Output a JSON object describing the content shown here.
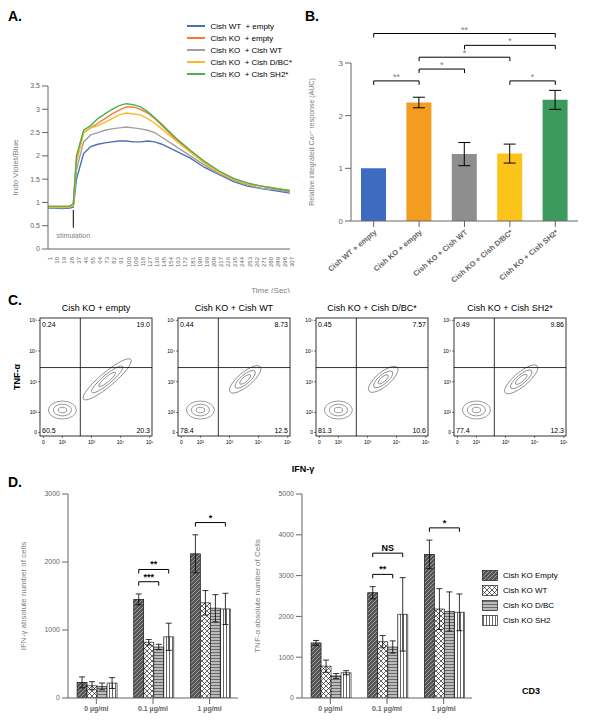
{
  "chart_data": [
    {
      "panel": "A.",
      "type": "line",
      "x_label": "Time (Sec)",
      "y_label": "Indo Violet/Blue",
      "legend": "upper right",
      "annotation": {
        "text": "stimulation",
        "x": 33
      },
      "x": [
        1,
        10,
        19,
        28,
        33,
        37,
        46,
        55,
        64,
        73,
        82,
        91,
        100,
        109,
        118,
        127,
        136,
        145,
        163,
        181,
        199,
        217,
        235,
        253,
        271,
        289,
        307
      ],
      "xlim": [
        1,
        307
      ],
      "xticks": [
        1,
        10,
        19,
        28,
        37,
        46,
        55,
        64,
        73,
        82,
        91,
        100,
        109,
        118,
        127,
        136,
        145,
        154,
        163,
        172,
        181,
        190,
        199,
        208,
        217,
        226,
        235,
        244,
        253,
        262,
        271,
        280,
        289,
        298,
        307
      ],
      "ylim": [
        0,
        3.5
      ],
      "yticks": [
        0,
        0.5,
        1,
        1.5,
        2,
        2.5,
        3,
        3.5
      ],
      "series": [
        {
          "name": "Cish WT  + empty",
          "color": "#4a6fb5",
          "values": [
            0.88,
            0.88,
            0.87,
            0.88,
            0.9,
            1.5,
            2.05,
            2.2,
            2.25,
            2.28,
            2.3,
            2.32,
            2.32,
            2.3,
            2.3,
            2.32,
            2.3,
            2.25,
            2.1,
            1.95,
            1.75,
            1.6,
            1.45,
            1.35,
            1.3,
            1.25,
            1.2
          ]
        },
        {
          "name": "Cish KO  + empty",
          "color": "#ef7d31",
          "values": [
            0.9,
            0.9,
            0.9,
            0.9,
            0.95,
            1.9,
            2.5,
            2.6,
            2.7,
            2.8,
            2.9,
            2.98,
            3.05,
            3.05,
            3.0,
            2.92,
            2.8,
            2.65,
            2.35,
            2.1,
            1.85,
            1.65,
            1.5,
            1.4,
            1.35,
            1.3,
            1.25
          ]
        },
        {
          "name": "Cish KO  + Cish WT",
          "color": "#a0a0a0",
          "values": [
            0.88,
            0.9,
            0.88,
            0.9,
            0.92,
            1.7,
            2.3,
            2.45,
            2.5,
            2.55,
            2.58,
            2.6,
            2.62,
            2.6,
            2.58,
            2.55,
            2.5,
            2.4,
            2.2,
            2.0,
            1.8,
            1.62,
            1.48,
            1.38,
            1.3,
            1.27,
            1.22
          ]
        },
        {
          "name": "Cish KO  + Cish D/BC*",
          "color": "#fdb827",
          "values": [
            0.9,
            0.9,
            0.9,
            0.9,
            0.94,
            1.85,
            2.5,
            2.6,
            2.65,
            2.72,
            2.8,
            2.88,
            2.92,
            2.9,
            2.88,
            2.8,
            2.7,
            2.58,
            2.32,
            2.08,
            1.85,
            1.65,
            1.5,
            1.4,
            1.35,
            1.3,
            1.25
          ]
        },
        {
          "name": "Cish KO  + Cish SH2*",
          "color": "#4caf50",
          "values": [
            0.92,
            0.92,
            0.92,
            0.92,
            0.97,
            2.0,
            2.55,
            2.65,
            2.8,
            2.9,
            3.0,
            3.08,
            3.12,
            3.1,
            3.05,
            2.95,
            2.82,
            2.68,
            2.38,
            2.12,
            1.88,
            1.68,
            1.52,
            1.42,
            1.35,
            1.3,
            1.25
          ]
        }
      ]
    },
    {
      "panel": "B.",
      "type": "bar",
      "y_label": "Relative integrated Ca²⁺ response (AUC)",
      "categories": [
        "Cish WT + empty",
        "Cish KO + empty",
        "Cish KO + Cish WT",
        "Cish KO + Cish D/BC*",
        "Cish KO + Cish SH2*"
      ],
      "values": [
        1,
        2.25,
        1.27,
        1.28,
        2.3
      ],
      "errors": [
        0,
        0.1,
        0.22,
        0.18,
        0.18
      ],
      "colors": [
        "#3d6bbf",
        "#f39c1f",
        "#8e8e8e",
        "#fcc419",
        "#3c9a5f"
      ],
      "ylim": [
        0,
        3
      ],
      "yticks": [
        0,
        1,
        2,
        3
      ],
      "significance": [
        {
          "from": "Cish WT + empty",
          "to": "Cish KO + empty",
          "label": "**"
        },
        {
          "from": "Cish KO + empty",
          "to": "Cish KO + Cish WT",
          "label": "*"
        },
        {
          "from": "Cish KO + Cish D/BC*",
          "to": "Cish KO + Cish SH2*",
          "label": "*"
        },
        {
          "from": "Cish KO + empty",
          "to": "Cish KO + Cish D/BC*",
          "label": "*"
        },
        {
          "from": "Cish KO + Cish WT",
          "to": "Cish KO + Cish SH2*",
          "label": "*"
        },
        {
          "from": "Cish WT + empty",
          "to": "Cish KO + Cish SH2*",
          "label": "**"
        }
      ]
    },
    {
      "panel": "C.",
      "type": "contour",
      "x_label": "IFN-γ",
      "y_label": "TNF-α",
      "log": true,
      "xticks": [
        0,
        {
          "value": 100,
          "label": "10²"
        },
        {
          "value": 1000,
          "label": "10³"
        },
        {
          "value": 10000,
          "label": "10⁴"
        },
        {
          "value": 100000,
          "label": "10⁵"
        }
      ],
      "yticks": [
        0,
        {
          "value": 100,
          "label": "10²"
        },
        {
          "value": 1000,
          "label": "10³"
        },
        {
          "value": 10000,
          "label": "10⁴"
        },
        {
          "value": 100000,
          "label": "10⁵"
        }
      ],
      "plots": [
        {
          "title": "Cish KO  + empty",
          "quadrants": {
            "upper_left": {
              "value": 0.24,
              "label": "0.24"
            },
            "upper_right": {
              "value": 19.0,
              "label": "19.0"
            },
            "lower_left": {
              "value": 60.5,
              "label": "60.5"
            },
            "lower_right": {
              "value": 20.3,
              "label": "20.3"
            }
          }
        },
        {
          "title": "Cish KO  + Cish WT",
          "quadrants": {
            "upper_left": {
              "value": 0.44,
              "label": "0.44"
            },
            "upper_right": {
              "value": 8.73,
              "label": "8.73"
            },
            "lower_left": {
              "value": 78.4,
              "label": "78.4"
            },
            "lower_right": {
              "value": 12.5,
              "label": "12.5"
            }
          }
        },
        {
          "title": "Cish KO  + Cish D/BC*",
          "quadrants": {
            "upper_left": {
              "value": 0.45,
              "label": "0.45"
            },
            "upper_right": {
              "value": 7.57,
              "label": "7.57"
            },
            "lower_left": {
              "value": 81.3,
              "label": "81.3"
            },
            "lower_right": {
              "value": 10.6,
              "label": "10.6"
            }
          }
        },
        {
          "title": "Cish KO  + Cish SH2*",
          "quadrants": {
            "upper_left": {
              "value": 0.49,
              "label": "0.49"
            },
            "upper_right": {
              "value": 9.86,
              "label": "9.86"
            },
            "lower_left": {
              "value": 77.4,
              "label": "77.4"
            },
            "lower_right": {
              "value": 12.3,
              "label": "12.3"
            }
          }
        }
      ]
    },
    {
      "panel": "D.",
      "type": "bar",
      "y_label": "IFN-γ absolute number of cells",
      "categories": [
        "0 µg/ml",
        "0.1 µg/ml",
        "1 µg/ml"
      ],
      "ylim": [
        0,
        3000
      ],
      "yticks": [
        0,
        1000,
        2000,
        3000
      ],
      "series": [
        {
          "name": "Cish KO Empty",
          "color": "#555555",
          "values": [
            230,
            1450,
            2120
          ],
          "errors": [
            80,
            80,
            280
          ]
        },
        {
          "name": "Cish KO WT",
          "color": "#ffffff",
          "values": [
            180,
            820,
            1400
          ],
          "errors": [
            60,
            40,
            180
          ]
        },
        {
          "name": "Cish KO D/BC",
          "color": "#bbbbbb",
          "values": [
            170,
            750,
            1320
          ],
          "errors": [
            50,
            40,
            200
          ]
        },
        {
          "name": "Cish KO SH2",
          "color": "#ffffff",
          "values": [
            220,
            900,
            1310
          ],
          "errors": [
            80,
            200,
            230
          ]
        }
      ],
      "significance": [
        {
          "category": "0.1 µg/ml",
          "from": "Cish KO Empty",
          "to": "Cish KO D/BC",
          "label": "***"
        },
        {
          "category": "0.1 µg/ml",
          "from": "Cish KO Empty",
          "to": "Cish KO SH2",
          "label": "**"
        },
        {
          "category": "1 µg/ml",
          "from": "Cish KO Empty",
          "to": "Cish KO SH2",
          "label": "*"
        }
      ]
    },
    {
      "type": "bar",
      "y_label": "TNF-α absolute number of Cells",
      "x_label": "CD3",
      "legend": "right",
      "categories": [
        "0 µg/ml",
        "0.1 µg/ml",
        "1 µg/ml"
      ],
      "ylim": [
        0,
        5000
      ],
      "yticks": [
        0,
        1000,
        2000,
        3000,
        4000,
        5000
      ],
      "series": [
        {
          "name": "Cish KO Empty",
          "color": "#555555",
          "values": [
            1350,
            2580,
            3520
          ],
          "errors": [
            60,
            150,
            350
          ]
        },
        {
          "name": "Cish KO WT",
          "color": "#ffffff",
          "values": [
            780,
            1380,
            2180
          ],
          "errors": [
            150,
            150,
            500
          ]
        },
        {
          "name": "Cish KO D/BC",
          "color": "#bbbbbb",
          "values": [
            540,
            1250,
            2120
          ],
          "errors": [
            60,
            150,
            480
          ]
        },
        {
          "name": "Cish KO SH2",
          "color": "#ffffff",
          "values": [
            620,
            2050,
            2100
          ],
          "errors": [
            50,
            900,
            450
          ]
        }
      ],
      "significance": [
        {
          "category": "0.1 µg/ml",
          "from": "Cish KO Empty",
          "to": "Cish KO D/BC",
          "label": "**"
        },
        {
          "category": "0.1 µg/ml",
          "from": "Cish KO Empty",
          "to": "Cish KO SH2",
          "label": "NS"
        },
        {
          "category": "1 µg/ml",
          "from": "Cish KO Empty",
          "to": "Cish KO SH2",
          "label": "*"
        }
      ]
    }
  ]
}
